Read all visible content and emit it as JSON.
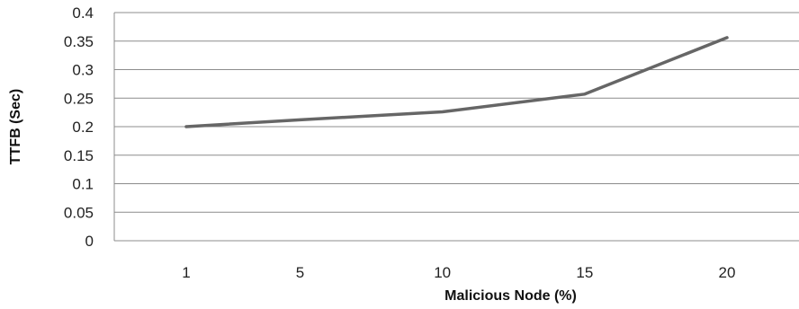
{
  "chart_data": {
    "type": "line",
    "xlabel": "Malicious Node (%)",
    "ylabel": "TTFB (Sec)",
    "x": [
      1,
      5,
      10,
      15,
      20
    ],
    "categories": [
      "1",
      "5",
      "10",
      "15",
      "20"
    ],
    "yticks": [
      "0",
      "0.05",
      "0.1",
      "0.15",
      "0.2",
      "0.25",
      "0.3",
      "0.35",
      "0.4"
    ],
    "ylim": [
      0,
      0.4
    ],
    "grid": true,
    "legend": "none",
    "series": [
      {
        "values": [
          0.2,
          0.212,
          0.226,
          0.257,
          0.356
        ],
        "color": "#666666"
      }
    ]
  }
}
